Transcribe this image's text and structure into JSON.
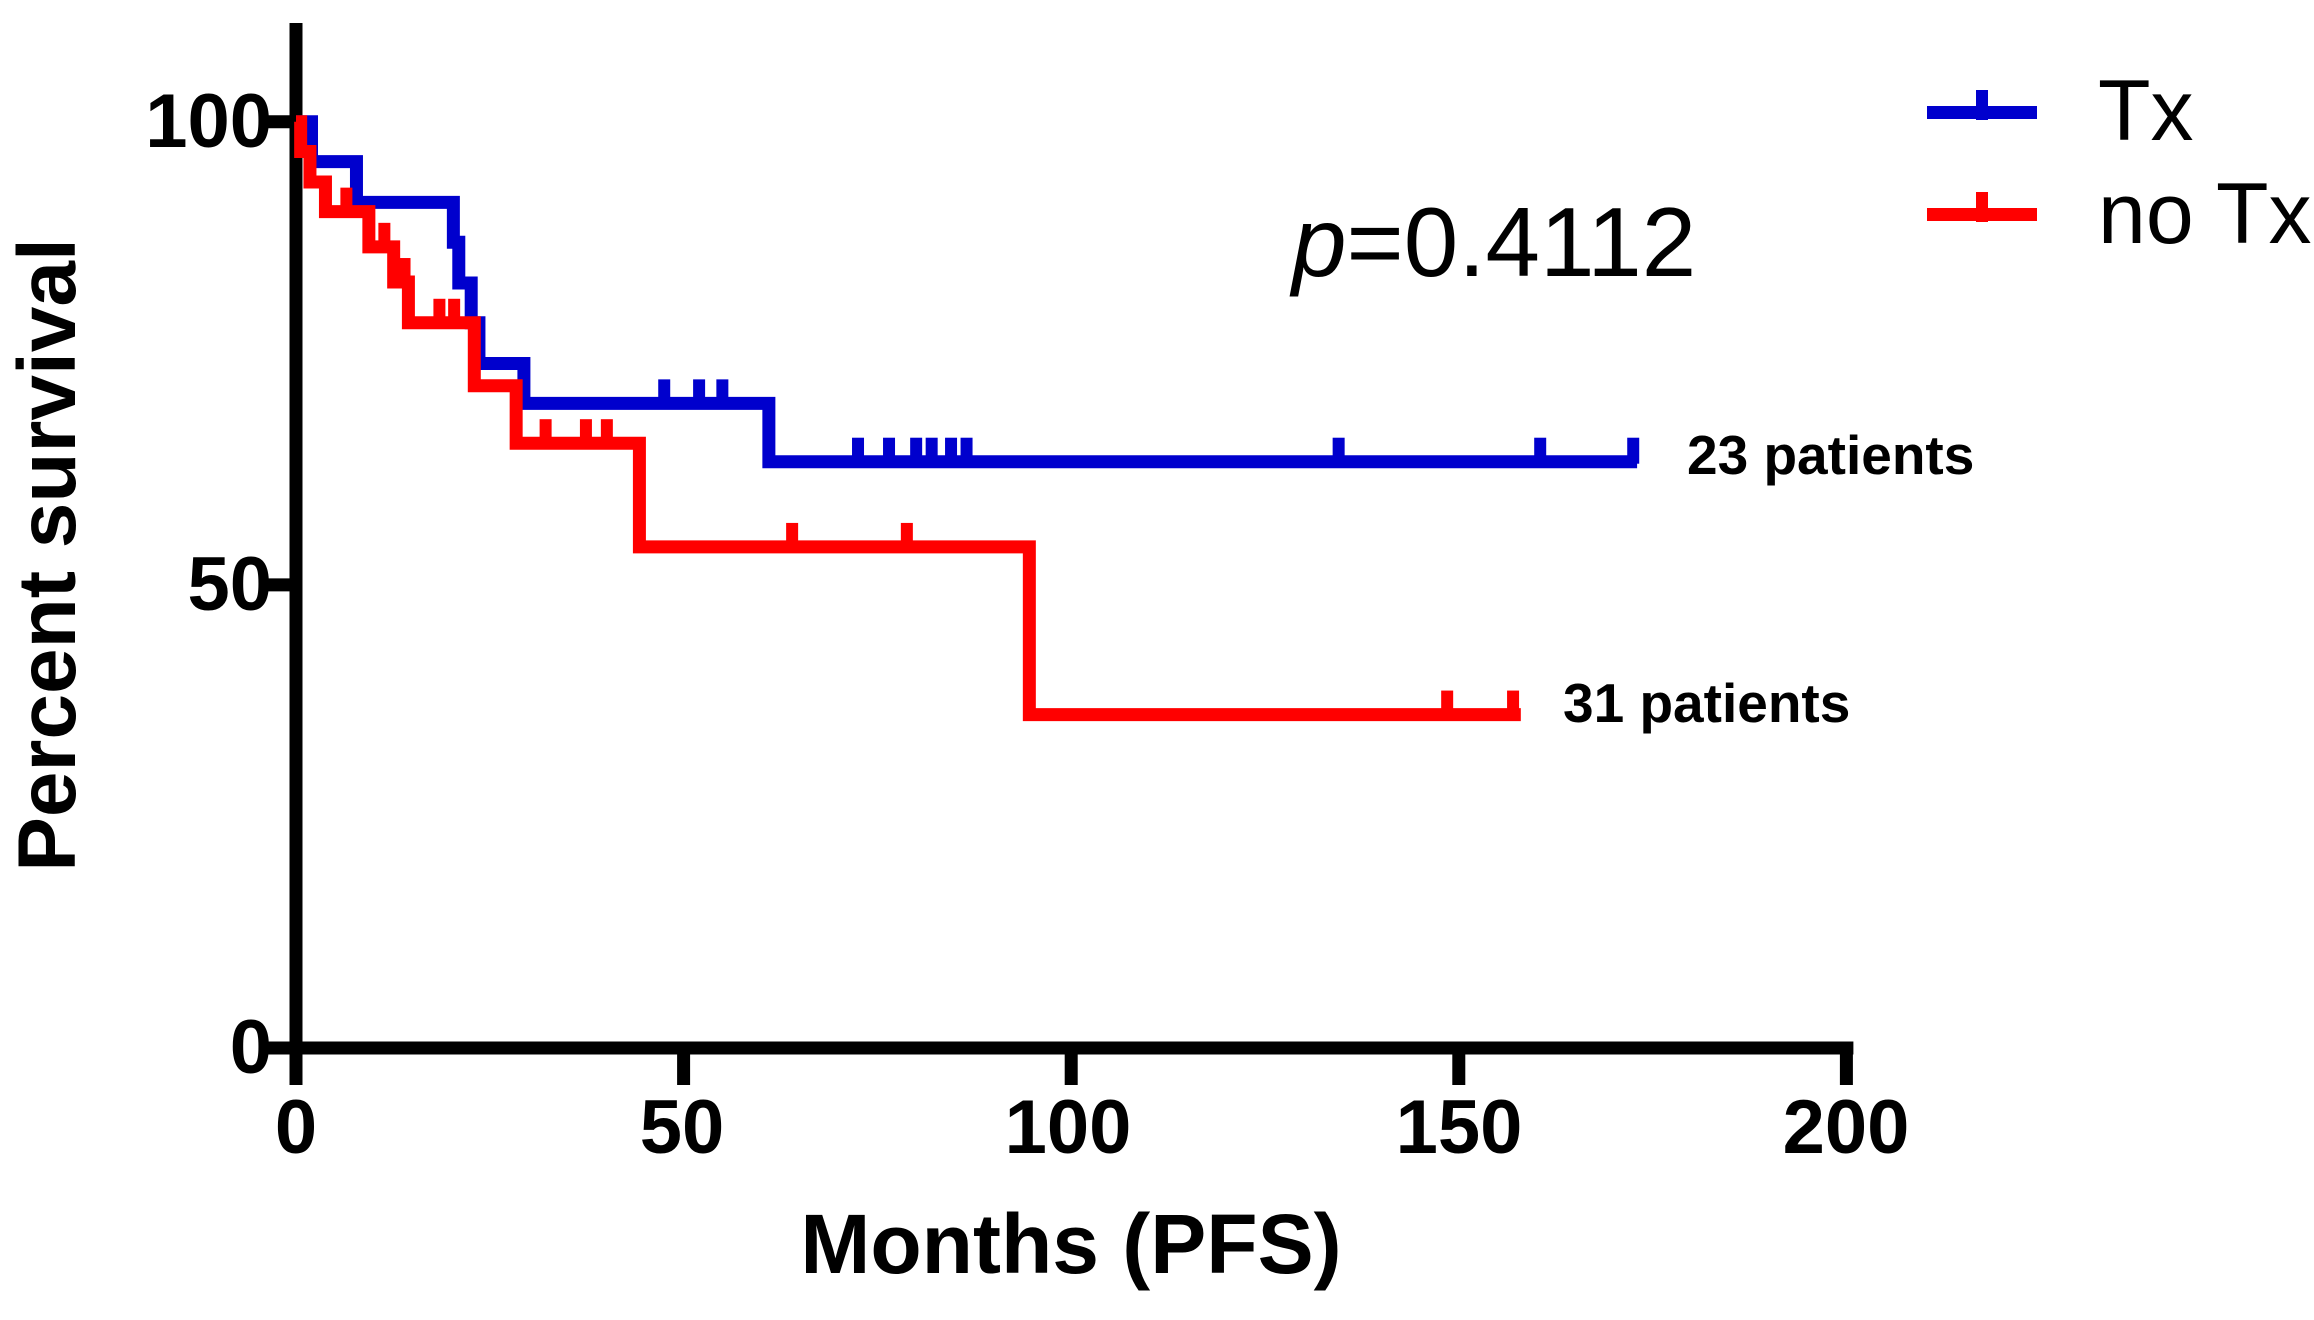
{
  "chart_data": {
    "type": "line",
    "subtype": "kaplan-meier-step",
    "title": "",
    "xlabel": "Months (PFS)",
    "ylabel": "Percent survival",
    "xlim": [
      0,
      200
    ],
    "ylim": [
      0,
      100
    ],
    "xticks": [
      0,
      50,
      100,
      150,
      200
    ],
    "yticks": [
      100,
      50,
      0
    ],
    "grid": false,
    "legend_position": "top-right",
    "annotation": {
      "p_italic": "p",
      "p_rest": "=0.4112",
      "p_full": "p=0.4112"
    },
    "axis_color": "#000000",
    "series": [
      {
        "name": "Tx",
        "color": "#0000CD",
        "count_label": "23 patients",
        "start": [
          0,
          100
        ],
        "end_month": 173,
        "steps": [
          [
            2.0,
            95.7
          ],
          [
            7.8,
            91.3
          ],
          [
            20.3,
            87.0
          ],
          [
            21.0,
            82.6
          ],
          [
            22.6,
            78.3
          ],
          [
            23.6,
            73.9
          ],
          [
            29.4,
            69.6
          ],
          [
            61.0,
            63.3
          ]
        ],
        "censor_months": [
          47.5,
          52,
          55,
          72.5,
          76.5,
          80,
          82,
          84.5,
          86.5,
          134.5,
          160.5,
          172.5
        ]
      },
      {
        "name": "no Tx",
        "color": "#FF0000",
        "count_label": "31 patients",
        "start": [
          0,
          100
        ],
        "end_month": 158,
        "steps": [
          [
            0.6,
            96.8
          ],
          [
            1.8,
            93.5
          ],
          [
            3.8,
            90.3
          ],
          [
            9.4,
            86.5
          ],
          [
            12.6,
            82.7
          ],
          [
            14.5,
            78.3
          ],
          [
            23.0,
            71.5
          ],
          [
            28.4,
            65.3
          ],
          [
            44.3,
            54.1
          ],
          [
            94.6,
            36.0
          ]
        ],
        "censor_months": [
          6.5,
          11.4,
          14.0,
          18.5,
          20.4,
          32.2,
          37.4,
          40.1,
          64.0,
          78.8,
          148.5,
          157.0
        ]
      }
    ]
  }
}
